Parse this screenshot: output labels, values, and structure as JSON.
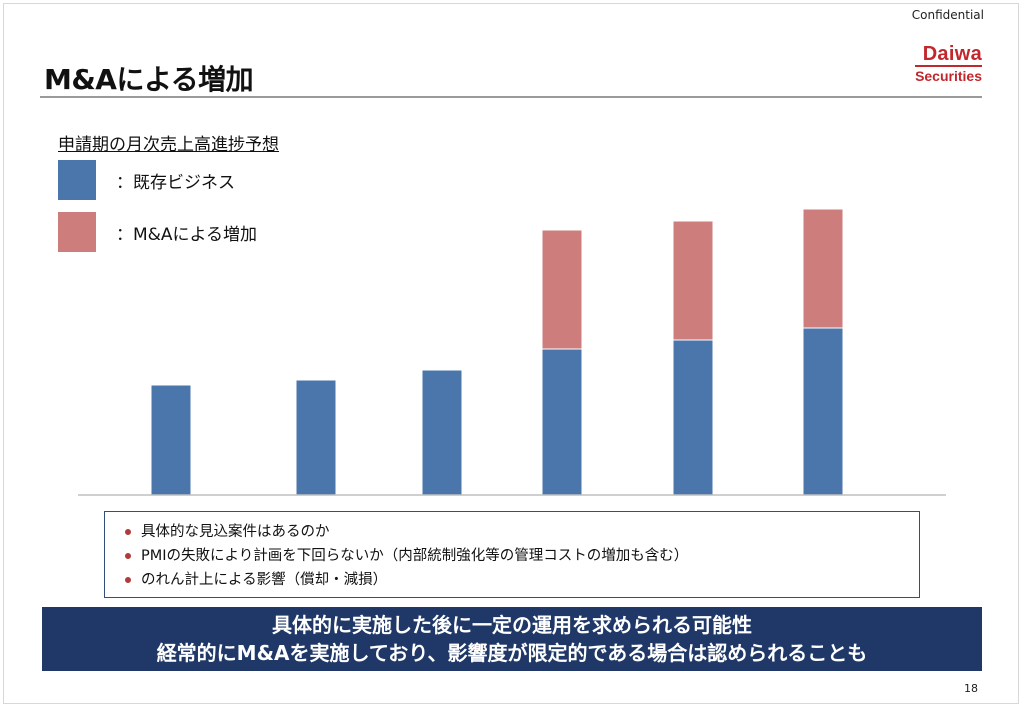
{
  "header": {
    "confidential": "Confidential",
    "title": "M&Aによる増加",
    "logo_main": "Daiwa",
    "logo_sub": "Securities"
  },
  "colors": {
    "existing": "#4a76ab",
    "ma": "#cd7d7b",
    "banner": "#1f3868",
    "logo": "#c0282d"
  },
  "chart_data": {
    "type": "bar",
    "stacked": true,
    "title": "申請期の月次売上高進捗予想",
    "categories": [
      "",
      "",
      "",
      "",
      "",
      ""
    ],
    "series": [
      {
        "name": "：既存ビジネス",
        "values": [
          110,
          115,
          125,
          146,
          155,
          167
        ]
      },
      {
        "name": "：M&Aによる増加",
        "values": [
          0,
          0,
          0,
          119,
          119,
          119
        ]
      }
    ],
    "ylim": [
      0,
      300
    ],
    "grid": false,
    "legend": "top-left"
  },
  "notes": {
    "bullets": [
      "具体的な見込案件はあるのか",
      "PMIの失敗により計画を下回らないか（内部統制強化等の管理コストの増加も含む）",
      "のれん計上による影響（償却・減損）"
    ]
  },
  "banner": {
    "line1": "具体的に実施した後に一定の運用を求められる可能性",
    "line2": "経常的にM&Aを実施しており、影響度が限定的である場合は認められることも"
  },
  "footer": {
    "page_number": "18"
  }
}
